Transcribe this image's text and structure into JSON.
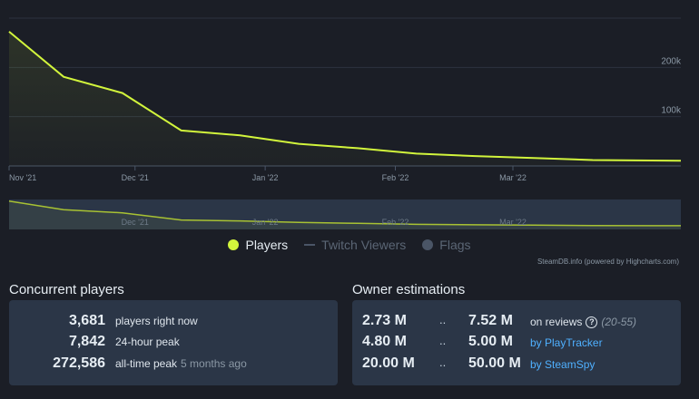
{
  "chart_data": {
    "type": "area",
    "series": [
      {
        "name": "Players",
        "color": "#d2f53c",
        "x": [
          "2021-11-01",
          "2021-11-14",
          "2021-11-28",
          "2021-12-12",
          "2021-12-26",
          "2022-01-09",
          "2022-01-23",
          "2022-02-06",
          "2022-02-20",
          "2022-03-06",
          "2022-03-20",
          "2022-04-03",
          "2022-04-10"
        ],
        "values": [
          272586,
          181000,
          148000,
          72000,
          62000,
          45000,
          36000,
          25000,
          20000,
          16000,
          12000,
          11000,
          10500
        ]
      }
    ],
    "x_ticks": [
      "Nov '21",
      "Dec '21",
      "Jan '22",
      "Feb '22",
      "Mar '22"
    ],
    "y_ticks": [
      "100k",
      "200k"
    ],
    "ylim": [
      0,
      300000
    ],
    "xlim": [
      "2021-11-01",
      "2022-04-10"
    ],
    "navigator_ticks": [
      "Dec '21",
      "Jan '22",
      "Feb '22",
      "Mar '22"
    ],
    "grid": true,
    "legend_placement": "bottom"
  },
  "legend": {
    "items": [
      {
        "label": "Players",
        "color": "#d2f53c",
        "active": true,
        "icon": "circle-icon"
      },
      {
        "label": "Twitch Viewers",
        "color": "#5b6675",
        "active": false,
        "icon": "line-icon"
      },
      {
        "label": "Flags",
        "color": "#5b6675",
        "active": false,
        "icon": "circle-icon"
      }
    ]
  },
  "credit": "SteamDB.info (powered by Highcharts.com)",
  "concurrent": {
    "title": "Concurrent players",
    "rows": [
      {
        "value": "3,681",
        "label": "players right now",
        "extra": ""
      },
      {
        "value": "7,842",
        "label": "24-hour peak",
        "extra": ""
      },
      {
        "value": "272,586",
        "label": "all-time peak",
        "extra": "5 months ago"
      }
    ]
  },
  "owners": {
    "title": "Owner estimations",
    "separator": "..",
    "rows": [
      {
        "low": "2.73 M",
        "high": "7.52 M",
        "source": "on reviews",
        "help": "?",
        "range": "(20-55)",
        "link": false
      },
      {
        "low": "4.80 M",
        "high": "5.00 M",
        "source": "by PlayTracker",
        "link": true
      },
      {
        "low": "20.00 M",
        "high": "50.00 M",
        "source": "by SteamSpy",
        "link": true
      }
    ]
  }
}
